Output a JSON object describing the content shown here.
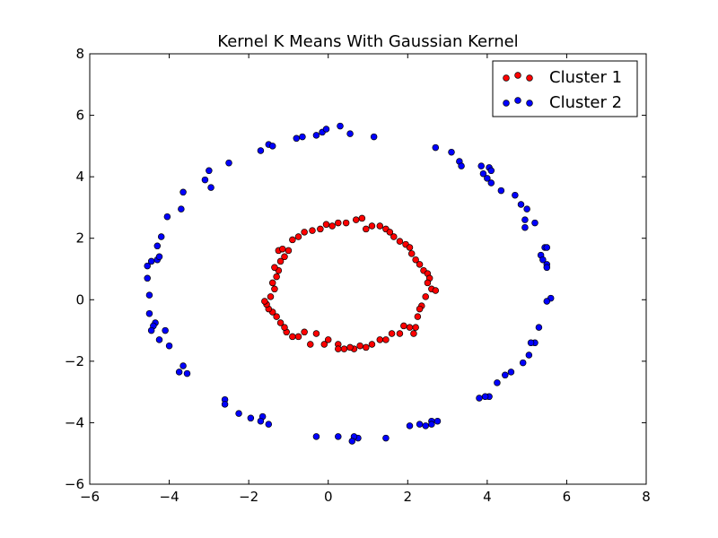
{
  "chart_data": {
    "type": "scatter",
    "title": "Kernel K Means With Gaussian Kernel",
    "xlabel": "",
    "ylabel": "",
    "xlim": [
      -6,
      8
    ],
    "ylim": [
      -6,
      8
    ],
    "xticks": [
      -6,
      -4,
      -2,
      0,
      2,
      4,
      6,
      8
    ],
    "yticks": [
      -6,
      -4,
      -2,
      0,
      2,
      4,
      6,
      8
    ],
    "xtick_labels": [
      "−6",
      "−4",
      "−2",
      "0",
      "2",
      "4",
      "6",
      "8"
    ],
    "ytick_labels": [
      "−6",
      "−4",
      "−2",
      "0",
      "2",
      "4",
      "6",
      "8"
    ],
    "grid": false,
    "legend_position": "top-right",
    "series": [
      {
        "name": "Cluster 1",
        "color": "#ff0000",
        "points": [
          [
            -0.75,
            2.05
          ],
          [
            -0.6,
            2.2
          ],
          [
            -0.4,
            2.25
          ],
          [
            -0.2,
            2.3
          ],
          [
            -0.05,
            2.45
          ],
          [
            0.1,
            2.4
          ],
          [
            0.25,
            2.5
          ],
          [
            0.45,
            2.5
          ],
          [
            0.7,
            2.6
          ],
          [
            0.85,
            2.65
          ],
          [
            0.95,
            2.3
          ],
          [
            1.1,
            2.4
          ],
          [
            1.3,
            2.4
          ],
          [
            1.45,
            2.3
          ],
          [
            1.55,
            2.2
          ],
          [
            1.65,
            2.05
          ],
          [
            1.8,
            1.9
          ],
          [
            1.95,
            1.8
          ],
          [
            2.05,
            1.7
          ],
          [
            2.1,
            1.5
          ],
          [
            2.2,
            1.3
          ],
          [
            2.3,
            1.15
          ],
          [
            2.4,
            0.95
          ],
          [
            2.5,
            0.85
          ],
          [
            2.55,
            0.7
          ],
          [
            2.5,
            0.55
          ],
          [
            2.6,
            0.35
          ],
          [
            2.7,
            0.3
          ],
          [
            2.45,
            0.1
          ],
          [
            2.35,
            -0.2
          ],
          [
            2.3,
            -0.3
          ],
          [
            2.25,
            -0.55
          ],
          [
            2.2,
            -0.9
          ],
          [
            2.15,
            -1.1
          ],
          [
            2.05,
            -0.9
          ],
          [
            1.9,
            -0.85
          ],
          [
            1.8,
            -1.1
          ],
          [
            1.6,
            -1.1
          ],
          [
            1.45,
            -1.3
          ],
          [
            1.3,
            -1.3
          ],
          [
            1.1,
            -1.45
          ],
          [
            0.95,
            -1.55
          ],
          [
            0.8,
            -1.5
          ],
          [
            0.65,
            -1.6
          ],
          [
            0.55,
            -1.55
          ],
          [
            0.4,
            -1.6
          ],
          [
            0.25,
            -1.45
          ],
          [
            0.25,
            -1.6
          ],
          [
            0.0,
            -1.3
          ],
          [
            -0.1,
            -1.45
          ],
          [
            -0.3,
            -1.1
          ],
          [
            -0.45,
            -1.45
          ],
          [
            -0.6,
            -1.05
          ],
          [
            -0.75,
            -1.2
          ],
          [
            -0.9,
            -1.2
          ],
          [
            -1.05,
            -1.05
          ],
          [
            -1.1,
            -0.9
          ],
          [
            -1.2,
            -0.75
          ],
          [
            -1.3,
            -0.55
          ],
          [
            -1.4,
            -0.4
          ],
          [
            -1.5,
            -0.3
          ],
          [
            -1.55,
            -0.15
          ],
          [
            -1.6,
            -0.05
          ],
          [
            -1.45,
            0.1
          ],
          [
            -1.35,
            0.35
          ],
          [
            -1.4,
            0.55
          ],
          [
            -1.3,
            0.75
          ],
          [
            -1.25,
            0.95
          ],
          [
            -1.35,
            1.05
          ],
          [
            -1.2,
            1.25
          ],
          [
            -1.1,
            1.4
          ],
          [
            -1.25,
            1.6
          ],
          [
            -1.15,
            1.65
          ],
          [
            -1.0,
            1.6
          ],
          [
            -0.9,
            1.95
          ]
        ]
      },
      {
        "name": "Cluster 2",
        "color": "#0000ff",
        "points": [
          [
            -4.55,
            1.1
          ],
          [
            -4.55,
            0.7
          ],
          [
            -4.45,
            1.25
          ],
          [
            -4.3,
            1.3
          ],
          [
            -4.25,
            1.4
          ],
          [
            -4.3,
            1.75
          ],
          [
            -4.2,
            2.05
          ],
          [
            -4.05,
            2.7
          ],
          [
            -3.7,
            2.95
          ],
          [
            -3.65,
            3.5
          ],
          [
            -3.1,
            3.9
          ],
          [
            -3.0,
            4.2
          ],
          [
            -2.95,
            3.65
          ],
          [
            -2.5,
            4.45
          ],
          [
            -1.7,
            4.85
          ],
          [
            -1.5,
            5.05
          ],
          [
            -1.4,
            5.0
          ],
          [
            -0.8,
            5.25
          ],
          [
            -0.65,
            5.3
          ],
          [
            -0.3,
            5.35
          ],
          [
            -0.15,
            5.45
          ],
          [
            -0.05,
            5.55
          ],
          [
            0.3,
            5.65
          ],
          [
            0.55,
            5.4
          ],
          [
            1.15,
            5.3
          ],
          [
            2.7,
            4.95
          ],
          [
            3.1,
            4.8
          ],
          [
            3.3,
            4.5
          ],
          [
            3.35,
            4.35
          ],
          [
            3.85,
            4.35
          ],
          [
            3.9,
            4.1
          ],
          [
            4.0,
            3.95
          ],
          [
            4.05,
            4.3
          ],
          [
            4.1,
            4.2
          ],
          [
            4.1,
            3.8
          ],
          [
            4.35,
            3.55
          ],
          [
            4.7,
            3.4
          ],
          [
            4.85,
            3.1
          ],
          [
            5.0,
            2.95
          ],
          [
            4.95,
            2.6
          ],
          [
            5.2,
            2.5
          ],
          [
            4.95,
            2.35
          ],
          [
            5.45,
            1.7
          ],
          [
            5.5,
            1.7
          ],
          [
            5.35,
            1.45
          ],
          [
            5.4,
            1.3
          ],
          [
            5.5,
            1.15
          ],
          [
            5.5,
            1.05
          ],
          [
            5.6,
            0.05
          ],
          [
            5.5,
            -0.05
          ],
          [
            5.3,
            -0.9
          ],
          [
            5.2,
            -1.4
          ],
          [
            5.1,
            -1.4
          ],
          [
            5.05,
            -1.8
          ],
          [
            4.9,
            -2.05
          ],
          [
            4.6,
            -2.35
          ],
          [
            4.45,
            -2.45
          ],
          [
            4.25,
            -2.7
          ],
          [
            4.05,
            -3.15
          ],
          [
            3.95,
            -3.15
          ],
          [
            3.8,
            -3.2
          ],
          [
            2.75,
            -3.95
          ],
          [
            2.6,
            -3.95
          ],
          [
            2.6,
            -4.05
          ],
          [
            2.45,
            -4.1
          ],
          [
            2.3,
            -4.05
          ],
          [
            2.05,
            -4.1
          ],
          [
            1.45,
            -4.5
          ],
          [
            0.75,
            -4.5
          ],
          [
            0.65,
            -4.45
          ],
          [
            0.6,
            -4.6
          ],
          [
            0.25,
            -4.45
          ],
          [
            -0.3,
            -4.45
          ],
          [
            -1.5,
            -4.05
          ],
          [
            -1.65,
            -3.8
          ],
          [
            -1.7,
            -3.95
          ],
          [
            -1.95,
            -3.85
          ],
          [
            -2.25,
            -3.7
          ],
          [
            -2.6,
            -3.25
          ],
          [
            -2.6,
            -3.4
          ],
          [
            -3.55,
            -2.4
          ],
          [
            -3.65,
            -2.15
          ],
          [
            -3.75,
            -2.35
          ],
          [
            -4.0,
            -1.5
          ],
          [
            -4.1,
            -1.0
          ],
          [
            -4.25,
            -1.3
          ],
          [
            -4.35,
            -0.75
          ],
          [
            -4.4,
            -0.85
          ],
          [
            -4.45,
            -1.0
          ],
          [
            -4.5,
            -0.45
          ],
          [
            -4.5,
            0.15
          ]
        ]
      }
    ]
  }
}
